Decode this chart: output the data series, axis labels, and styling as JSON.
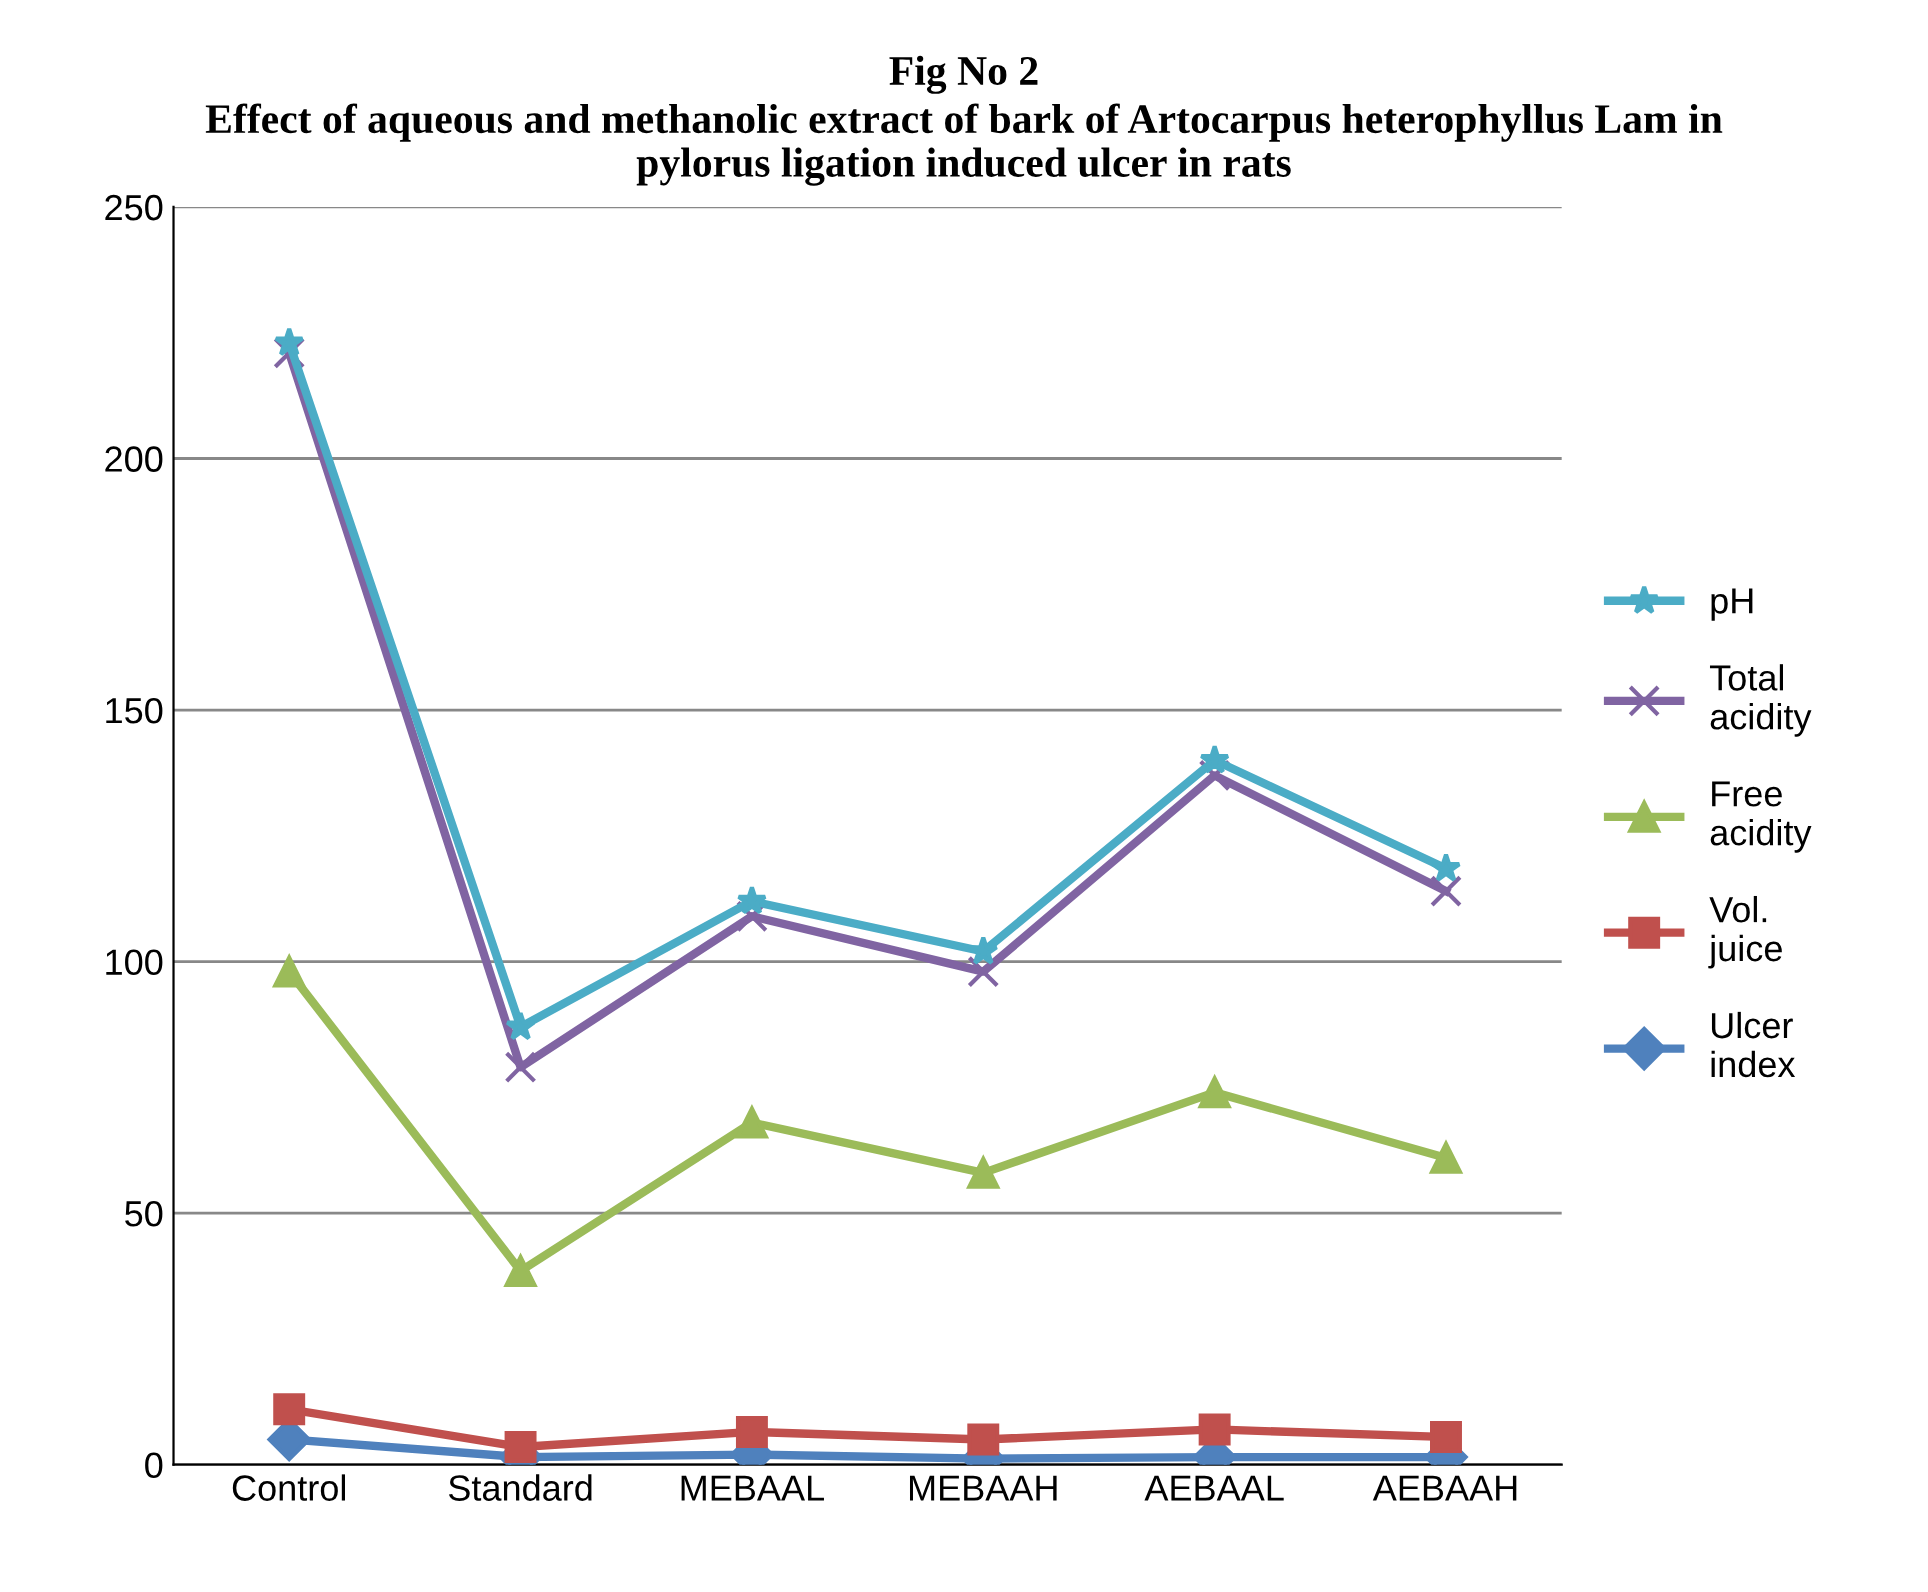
{
  "chart_data": {
    "type": "line",
    "title": "Fig No 2",
    "subtitle": "Effect of aqueous and methanolic extract of bark of Artocarpus heterophyllus Lam in pylorus ligation induced ulcer in rats",
    "categories": [
      "Control",
      "Standard",
      "MEBAAL",
      "MEBAAH",
      "AEBAAL",
      "AEBAAH"
    ],
    "series": [
      {
        "name": "pH",
        "color": "#4bacc6",
        "marker": "star",
        "values": [
          223,
          87,
          112,
          102,
          140,
          118.5
        ]
      },
      {
        "name": "Total acidity",
        "color": "#8064a2",
        "marker": "cross",
        "values": [
          221,
          79,
          109,
          98,
          137,
          114
        ]
      },
      {
        "name": "Free acidity",
        "color": "#9bbb59",
        "marker": "triangle",
        "values": [
          98,
          38.5,
          68,
          58,
          74,
          61
        ]
      },
      {
        "name": "Vol. juice",
        "color": "#c0504d",
        "marker": "square",
        "values": [
          11,
          3.5,
          6.5,
          5,
          7,
          5.5
        ]
      },
      {
        "name": "Ulcer index",
        "color": "#4f81bd",
        "marker": "diamond",
        "values": [
          5,
          1.5,
          2,
          1.2,
          1.5,
          1.5
        ]
      }
    ],
    "ylim": [
      0,
      250
    ],
    "yticks": [
      0,
      50,
      100,
      150,
      200,
      250
    ],
    "grid": "y",
    "legend": "right"
  }
}
